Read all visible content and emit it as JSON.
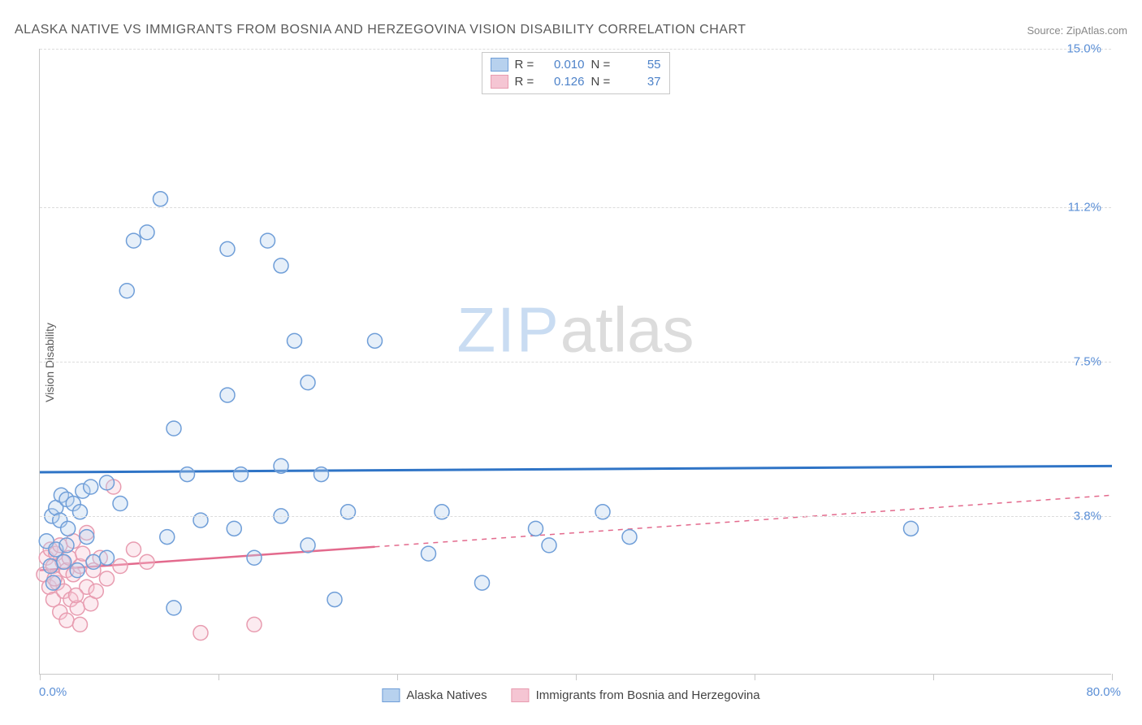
{
  "title": "ALASKA NATIVE VS IMMIGRANTS FROM BOSNIA AND HERZEGOVINA VISION DISABILITY CORRELATION CHART",
  "source": "Source: ZipAtlas.com",
  "ylabel": "Vision Disability",
  "watermark": {
    "part1": "ZIP",
    "part2": "atlas"
  },
  "chart": {
    "type": "scatter",
    "background_color": "#ffffff",
    "grid_color": "#dcdcdc",
    "axis_color": "#c8c8c8",
    "xlim": [
      0,
      80
    ],
    "ylim": [
      0,
      15
    ],
    "x_tick_positions": [
      0,
      13.33,
      26.67,
      40,
      53.33,
      66.67,
      80
    ],
    "x_tick_labels": {
      "min": "0.0%",
      "max": "80.0%"
    },
    "y_ticks": [
      {
        "value": 3.8,
        "label": "3.8%"
      },
      {
        "value": 7.5,
        "label": "7.5%"
      },
      {
        "value": 11.2,
        "label": "11.2%"
      },
      {
        "value": 15.0,
        "label": "15.0%"
      }
    ],
    "label_fontsize": 15,
    "label_color": "#5b8fd6",
    "marker_radius": 9,
    "marker_stroke_width": 1.5,
    "marker_fill_opacity": 0.35,
    "series": [
      {
        "name": "Alaska Natives",
        "color_stroke": "#6f9ed8",
        "color_fill": "#b7d1ee",
        "trend_color": "#2f74c6",
        "trend_width": 3,
        "trend": {
          "y_start": 4.85,
          "y_end": 5.0,
          "x_solid_end": 80
        },
        "R": "0.010",
        "N": "55",
        "points": [
          [
            0.5,
            3.2
          ],
          [
            0.8,
            2.6
          ],
          [
            0.9,
            3.8
          ],
          [
            1.0,
            2.2
          ],
          [
            1.2,
            4.0
          ],
          [
            1.2,
            3.0
          ],
          [
            1.5,
            3.7
          ],
          [
            1.6,
            4.3
          ],
          [
            1.8,
            2.7
          ],
          [
            2.0,
            4.2
          ],
          [
            2.1,
            3.5
          ],
          [
            2.5,
            4.1
          ],
          [
            2.8,
            2.5
          ],
          [
            3.0,
            3.9
          ],
          [
            3.2,
            4.4
          ],
          [
            3.5,
            3.3
          ],
          [
            3.8,
            4.5
          ],
          [
            4.0,
            2.7
          ],
          [
            5.0,
            2.8
          ],
          [
            5.0,
            4.6
          ],
          [
            6.0,
            4.1
          ],
          [
            6.5,
            9.2
          ],
          [
            7.0,
            10.4
          ],
          [
            8.0,
            10.6
          ],
          [
            9.0,
            11.4
          ],
          [
            9.5,
            3.3
          ],
          [
            10.0,
            5.9
          ],
          [
            10.0,
            1.6
          ],
          [
            11.0,
            4.8
          ],
          [
            12.0,
            3.7
          ],
          [
            14.0,
            10.2
          ],
          [
            14.0,
            6.7
          ],
          [
            14.5,
            3.5
          ],
          [
            15.0,
            4.8
          ],
          [
            16.0,
            2.8
          ],
          [
            17.0,
            10.4
          ],
          [
            18.0,
            5.0
          ],
          [
            18.0,
            9.8
          ],
          [
            18.0,
            3.8
          ],
          [
            19.0,
            8.0
          ],
          [
            20.0,
            3.1
          ],
          [
            20.0,
            7.0
          ],
          [
            21.0,
            4.8
          ],
          [
            22.0,
            1.8
          ],
          [
            23.0,
            3.9
          ],
          [
            25.0,
            8.0
          ],
          [
            29.0,
            2.9
          ],
          [
            30.0,
            3.9
          ],
          [
            33.0,
            2.2
          ],
          [
            37.0,
            3.5
          ],
          [
            38.0,
            3.1
          ],
          [
            42.0,
            3.9
          ],
          [
            44.0,
            3.3
          ],
          [
            65.0,
            3.5
          ],
          [
            2.0,
            3.1
          ]
        ]
      },
      {
        "name": "Immigrants from Bosnia and Herzegovina",
        "color_stroke": "#e89cb0",
        "color_fill": "#f5c5d3",
        "trend_color": "#e36a8d",
        "trend_width": 2.5,
        "trend": {
          "y_start": 2.5,
          "y_end": 4.3,
          "x_solid_end": 25
        },
        "R": "0.126",
        "N": "37",
        "points": [
          [
            0.3,
            2.4
          ],
          [
            0.5,
            2.8
          ],
          [
            0.7,
            2.1
          ],
          [
            0.8,
            3.0
          ],
          [
            1.0,
            2.6
          ],
          [
            1.0,
            1.8
          ],
          [
            1.2,
            2.9
          ],
          [
            1.3,
            2.2
          ],
          [
            1.5,
            3.1
          ],
          [
            1.5,
            1.5
          ],
          [
            1.7,
            2.7
          ],
          [
            1.8,
            2.0
          ],
          [
            2.0,
            2.5
          ],
          [
            2.0,
            1.3
          ],
          [
            2.2,
            2.8
          ],
          [
            2.3,
            1.8
          ],
          [
            2.5,
            2.4
          ],
          [
            2.5,
            3.2
          ],
          [
            2.8,
            1.6
          ],
          [
            3.0,
            2.6
          ],
          [
            3.0,
            1.2
          ],
          [
            3.2,
            2.9
          ],
          [
            3.5,
            2.1
          ],
          [
            3.5,
            3.4
          ],
          [
            3.8,
            1.7
          ],
          [
            4.0,
            2.5
          ],
          [
            4.2,
            2.0
          ],
          [
            4.5,
            2.8
          ],
          [
            5.0,
            2.3
          ],
          [
            5.5,
            4.5
          ],
          [
            6.0,
            2.6
          ],
          [
            7.0,
            3.0
          ],
          [
            8.0,
            2.7
          ],
          [
            12.0,
            1.0
          ],
          [
            16.0,
            1.2
          ],
          [
            2.7,
            1.9
          ],
          [
            1.1,
            2.3
          ]
        ]
      }
    ]
  },
  "legend_top": {
    "r_label": "R =",
    "n_label": "N ="
  },
  "legend_bottom": [
    "Alaska Natives",
    "Immigrants from Bosnia and Herzegovina"
  ]
}
